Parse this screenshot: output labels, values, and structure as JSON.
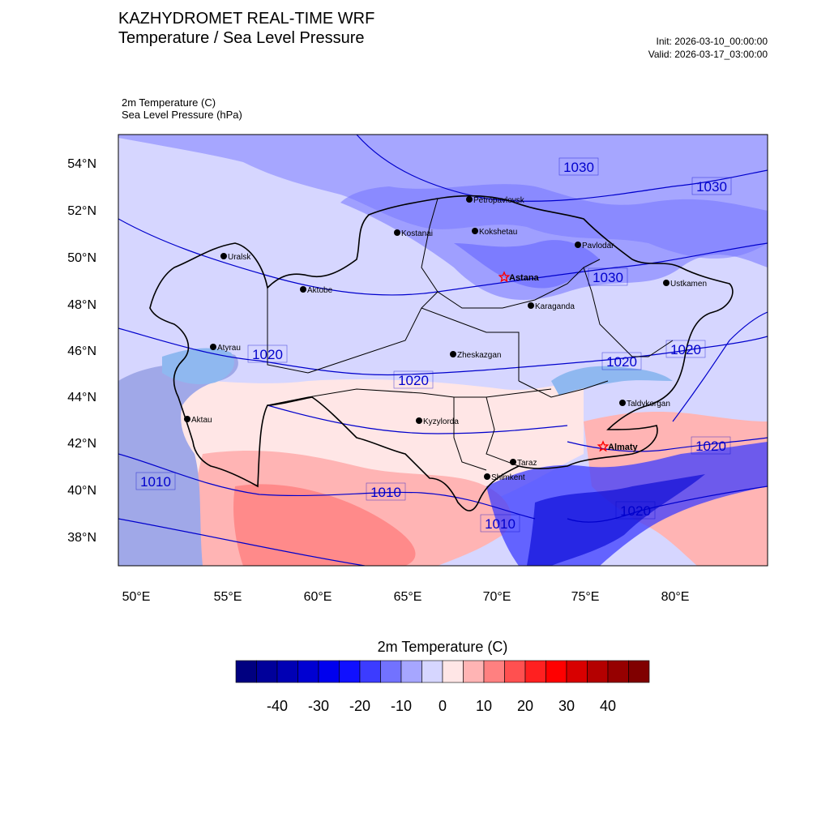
{
  "header": {
    "title_line1": "KAZHYDROMET REAL-TIME WRF",
    "title_line2": "Temperature / Sea Level Pressure",
    "init": "Init: 2026-03-10_00:00:00",
    "valid": "Valid: 2026-03-17_03:00:00",
    "variable1": "2m Temperature   (C)",
    "variable2": "Sea Level Pressure   (hPa)"
  },
  "map": {
    "lat_labels": [
      "54°N",
      "52°N",
      "50°N",
      "48°N",
      "46°N",
      "44°N",
      "42°N",
      "40°N",
      "38°N"
    ],
    "lon_labels": [
      "50°E",
      "55°E",
      "60°E",
      "65°E",
      "70°E",
      "75°E",
      "80°E"
    ],
    "cities": [
      {
        "name": "Uralsk",
        "type": "city"
      },
      {
        "name": "Aktobe",
        "type": "city"
      },
      {
        "name": "Kostanai",
        "type": "city"
      },
      {
        "name": "Petropavlovsk",
        "type": "city"
      },
      {
        "name": "Kokshetau",
        "type": "city"
      },
      {
        "name": "Pavlodar",
        "type": "city"
      },
      {
        "name": "Astana",
        "type": "capital"
      },
      {
        "name": "Ustkamen",
        "type": "city"
      },
      {
        "name": "Karaganda",
        "type": "city"
      },
      {
        "name": "Atyrau",
        "type": "city"
      },
      {
        "name": "Zheskazgan",
        "type": "city"
      },
      {
        "name": "Taldykorgan",
        "type": "city"
      },
      {
        "name": "Aktau",
        "type": "city"
      },
      {
        "name": "Kyzylorda",
        "type": "city"
      },
      {
        "name": "Almaty",
        "type": "capital"
      },
      {
        "name": "Taraz",
        "type": "city"
      },
      {
        "name": "Shimkent",
        "type": "city"
      }
    ],
    "isobar_labels": [
      "1030",
      "1030",
      "1030",
      "1020",
      "1020",
      "1020",
      "1020",
      "1020",
      "1010",
      "1010",
      "1010",
      "1020"
    ]
  },
  "colorbar": {
    "title": "2m Temperature  (C)",
    "ticks": [
      "-40",
      "-30",
      "-20",
      "-10",
      "0",
      "10",
      "20",
      "30",
      "40"
    ],
    "colors": [
      "#000080",
      "#00009a",
      "#0000b4",
      "#0000d2",
      "#0000ee",
      "#1010ff",
      "#3c3cff",
      "#7272ff",
      "#a6a6ff",
      "#d6d6ff",
      "#ffe6e6",
      "#ffb4b4",
      "#ff8080",
      "#ff5050",
      "#ff2020",
      "#ff0000",
      "#d80000",
      "#b40000",
      "#960000",
      "#800000"
    ]
  },
  "colors": {
    "isobar": "#0000cc",
    "border": "#000000",
    "capital_star": "#ff0000"
  }
}
